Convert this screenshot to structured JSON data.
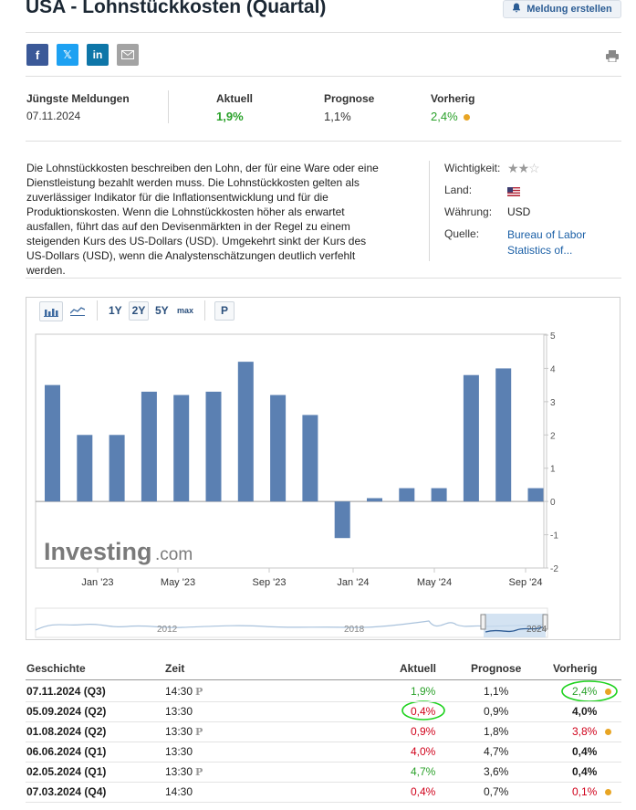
{
  "header": {
    "title": "USA - Lohnstückkosten (Quartal)",
    "alert_button": "Meldung erstellen"
  },
  "share": {
    "facebook": "f",
    "x": "𝕏",
    "linkedin": "in"
  },
  "overview": {
    "latest_label": "Jüngste Meldungen",
    "latest_date": "07.11.2024",
    "actual_label": "Aktuell",
    "actual_value": "1,9%",
    "forecast_label": "Prognose",
    "forecast_value": "1,1%",
    "previous_label": "Vorherig",
    "previous_value": "2,4%"
  },
  "description": "Die Lohnstückkosten beschreiben den Lohn, der für eine Ware oder eine Dienstleistung bezahlt werden muss. Die Lohnstückkosten gelten als zuverlässiger Indikator für die Inflationsentwicklung und für die Produktionskosten. Wenn die Lohnstückkosten höher als erwartet ausfallen, führt das auf den Devisenmärkten in der Regel zu einem steigenden Kurs des US-Dollars (USD). Umgekehrt sinkt der Kurs des US-Dollars (USD), wenn die Analystenschätzungen deutlich verfehlt werden.",
  "info": {
    "importance_label": "Wichtigkeit:",
    "importance_stars": 2,
    "country_label": "Land:",
    "currency_label": "Währung:",
    "currency_value": "USD",
    "source_label": "Quelle:",
    "source_line1": "Bureau of Labor",
    "source_line2": "Statistics of..."
  },
  "toolbar": {
    "y1": "1Y",
    "y2": "2Y",
    "y5": "5Y",
    "max": "max",
    "p": "P"
  },
  "chart_data": {
    "type": "bar",
    "values": [
      3.5,
      2.0,
      2.0,
      3.3,
      3.2,
      3.3,
      4.2,
      3.2,
      2.6,
      -1.1,
      0.1,
      0.4,
      0.4,
      3.8,
      4.0,
      0.4
    ],
    "x_tick_labels": [
      "Jan '23",
      "May '23",
      "Sep '23",
      "Jan '24",
      "May '24",
      "Sep '24"
    ],
    "y_tick_labels": [
      "5",
      "4",
      "3",
      "2",
      "1",
      "0",
      "-1",
      "-2"
    ],
    "ylim": [
      -2,
      5
    ],
    "grid": false,
    "color": "#5b80b2",
    "watermark_brand": "Investing",
    "watermark_domain": ".com",
    "navigator_labels": [
      "2012",
      "2018",
      "2024"
    ]
  },
  "history": {
    "headers": {
      "date": "Geschichte",
      "time": "Zeit",
      "actual": "Aktuell",
      "forecast": "Prognose",
      "previous": "Vorherig"
    },
    "rows": [
      {
        "date": "07.11.2024 (Q3)",
        "time": "14:30",
        "p": true,
        "actual": "1,9%",
        "actual_class": "pos",
        "forecast": "1,1%",
        "previous": "2,4%",
        "previous_class": "pos",
        "dot": true
      },
      {
        "date": "05.09.2024 (Q2)",
        "time": "13:30",
        "p": false,
        "actual": "0,4%",
        "actual_class": "neg",
        "forecast": "0,9%",
        "previous": "4,0%",
        "previous_class": "",
        "dot": false
      },
      {
        "date": "01.08.2024 (Q2)",
        "time": "13:30",
        "p": true,
        "actual": "0,9%",
        "actual_class": "neg",
        "forecast": "1,8%",
        "previous": "3,8%",
        "previous_class": "neg",
        "dot": true
      },
      {
        "date": "06.06.2024 (Q1)",
        "time": "13:30",
        "p": false,
        "actual": "4,0%",
        "actual_class": "neg",
        "forecast": "4,7%",
        "previous": "0,4%",
        "previous_class": "",
        "dot": false
      },
      {
        "date": "02.05.2024 (Q1)",
        "time": "13:30",
        "p": true,
        "actual": "4,7%",
        "actual_class": "pos",
        "forecast": "3,6%",
        "previous": "0,4%",
        "previous_class": "",
        "dot": false
      },
      {
        "date": "07.03.2024 (Q4)",
        "time": "14:30",
        "p": false,
        "actual": "0,4%",
        "actual_class": "neg",
        "forecast": "0,7%",
        "previous": "0,1%",
        "previous_class": "neg",
        "dot": true
      }
    ]
  }
}
